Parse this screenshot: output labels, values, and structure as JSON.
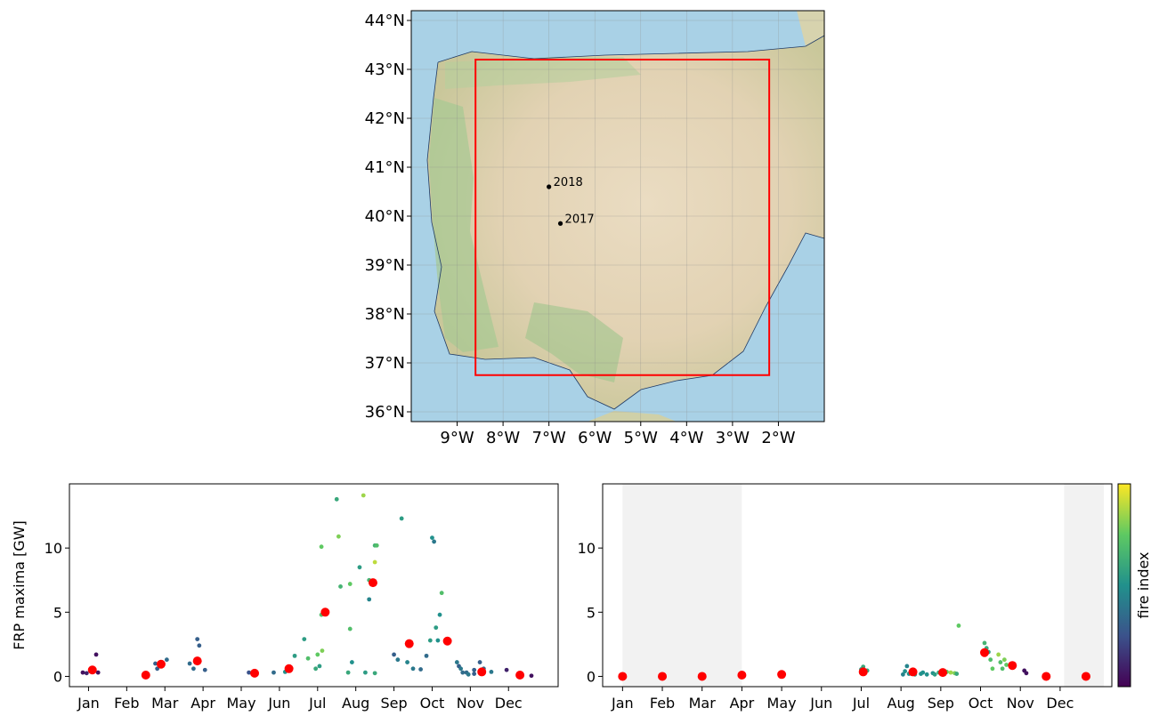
{
  "chart_data": [
    {
      "type": "map",
      "xlim": [
        -10.0,
        -1.0
      ],
      "ylim": [
        35.8,
        44.2
      ],
      "x_ticks": [
        -9,
        -8,
        -7,
        -6,
        -5,
        -4,
        -3,
        -2
      ],
      "x_tick_labels": [
        "9°W",
        "8°W",
        "7°W",
        "6°W",
        "5°W",
        "4°W",
        "3°W",
        "2°W"
      ],
      "y_ticks": [
        36,
        37,
        38,
        39,
        40,
        41,
        42,
        43,
        44
      ],
      "y_tick_labels": [
        "36°N",
        "37°N",
        "38°N",
        "39°N",
        "40°N",
        "41°N",
        "42°N",
        "43°N",
        "44°N"
      ],
      "box": {
        "lon": [
          -8.6,
          -2.2
        ],
        "lat": [
          36.75,
          43.2
        ],
        "color": "#ff0000"
      },
      "points": [
        {
          "label": "2018",
          "lon": -7.0,
          "lat": 40.6
        },
        {
          "label": "2017",
          "lon": -6.75,
          "lat": 39.85
        }
      ],
      "grid": true
    },
    {
      "type": "scatter",
      "ylabel": "FRP maxima [GW]",
      "xlim": [
        0,
        12.8
      ],
      "ylim": [
        -0.8,
        15.0
      ],
      "y_ticks": [
        0,
        5,
        10
      ],
      "y_tick_labels": [
        "0",
        "5",
        "10"
      ],
      "x_ticks": [
        0.5,
        1.5,
        2.5,
        3.5,
        4.5,
        5.5,
        6.5,
        7.5,
        8.5,
        9.5,
        10.5,
        11.5
      ],
      "x_tick_labels": [
        "Jan",
        "Feb",
        "Mar",
        "Apr",
        "May",
        "Jun",
        "Jul",
        "Aug",
        "Sep",
        "Oct",
        "Nov",
        "Dec"
      ],
      "small_points": [
        [
          0.35,
          0.3,
          0.05
        ],
        [
          0.45,
          0.25,
          0.1
        ],
        [
          0.7,
          1.7,
          0.05
        ],
        [
          0.75,
          0.3,
          0.05
        ],
        [
          2.25,
          1.0,
          0.3
        ],
        [
          2.3,
          0.6,
          0.3
        ],
        [
          2.55,
          1.3,
          0.35
        ],
        [
          3.15,
          1.0,
          0.35
        ],
        [
          3.25,
          0.6,
          0.35
        ],
        [
          3.35,
          2.9,
          0.3
        ],
        [
          3.4,
          2.4,
          0.3
        ],
        [
          3.55,
          0.5,
          0.3
        ],
        [
          4.7,
          0.3,
          0.25
        ],
        [
          4.8,
          0.25,
          0.3
        ],
        [
          5.35,
          0.3,
          0.35
        ],
        [
          5.65,
          0.35,
          0.5
        ],
        [
          5.9,
          1.6,
          0.55
        ],
        [
          6.15,
          2.9,
          0.55
        ],
        [
          6.25,
          1.4,
          0.7
        ],
        [
          6.45,
          0.6,
          0.6
        ],
        [
          6.5,
          1.7,
          0.75
        ],
        [
          6.55,
          0.8,
          0.55
        ],
        [
          6.6,
          10.1,
          0.75
        ],
        [
          6.6,
          4.8,
          0.7
        ],
        [
          6.62,
          2.0,
          0.8
        ],
        [
          7.0,
          13.8,
          0.6
        ],
        [
          7.05,
          10.9,
          0.8
        ],
        [
          7.1,
          7.0,
          0.65
        ],
        [
          7.3,
          0.3,
          0.6
        ],
        [
          7.35,
          3.7,
          0.7
        ],
        [
          7.35,
          7.2,
          0.75
        ],
        [
          7.4,
          1.1,
          0.5
        ],
        [
          7.6,
          8.5,
          0.55
        ],
        [
          7.7,
          14.1,
          0.85
        ],
        [
          7.75,
          0.3,
          0.55
        ],
        [
          7.85,
          6.0,
          0.45
        ],
        [
          7.85,
          7.5,
          0.65
        ],
        [
          8.0,
          10.2,
          0.65
        ],
        [
          8.05,
          10.2,
          0.7
        ],
        [
          8.0,
          8.9,
          0.9
        ],
        [
          8.0,
          0.25,
          0.6
        ],
        [
          8.5,
          1.7,
          0.3
        ],
        [
          8.6,
          1.3,
          0.4
        ],
        [
          8.7,
          12.3,
          0.55
        ],
        [
          8.85,
          1.1,
          0.45
        ],
        [
          9.0,
          0.6,
          0.4
        ],
        [
          9.2,
          0.55,
          0.35
        ],
        [
          9.35,
          1.6,
          0.35
        ],
        [
          9.45,
          2.8,
          0.55
        ],
        [
          9.5,
          10.8,
          0.5
        ],
        [
          9.55,
          10.5,
          0.4
        ],
        [
          9.6,
          3.8,
          0.55
        ],
        [
          9.65,
          2.8,
          0.5
        ],
        [
          9.7,
          4.8,
          0.5
        ],
        [
          9.75,
          6.5,
          0.7
        ],
        [
          10.15,
          1.1,
          0.4
        ],
        [
          10.2,
          0.8,
          0.3
        ],
        [
          10.25,
          0.6,
          0.4
        ],
        [
          10.3,
          0.3,
          0.35
        ],
        [
          10.4,
          0.3,
          0.35
        ],
        [
          10.45,
          0.15,
          0.4
        ],
        [
          10.6,
          0.5,
          0.3
        ],
        [
          10.6,
          0.2,
          0.3
        ],
        [
          10.75,
          1.1,
          0.3
        ],
        [
          10.85,
          0.6,
          0.35
        ],
        [
          11.05,
          0.35,
          0.4
        ],
        [
          11.45,
          0.5,
          0.1
        ],
        [
          11.85,
          0.15,
          0.1
        ],
        [
          12.1,
          0.05,
          0.05
        ]
      ],
      "monthly_points": [
        [
          0.6,
          0.5
        ],
        [
          2.0,
          0.1
        ],
        [
          2.4,
          0.95
        ],
        [
          3.35,
          1.2
        ],
        [
          4.85,
          0.25
        ],
        [
          5.75,
          0.6
        ],
        [
          6.7,
          5.0
        ],
        [
          7.95,
          7.3
        ],
        [
          8.9,
          2.55
        ],
        [
          9.9,
          2.75
        ],
        [
          10.8,
          0.35
        ],
        [
          11.8,
          0.1
        ]
      ],
      "monthly_color": "#ff0000"
    },
    {
      "type": "scatter",
      "xlim": [
        0,
        12.8
      ],
      "ylim": [
        -0.8,
        15.0
      ],
      "y_ticks": [
        0,
        5,
        10
      ],
      "y_tick_labels": [
        "0",
        "5",
        "10"
      ],
      "x_ticks": [
        0.5,
        1.5,
        2.5,
        3.5,
        4.5,
        5.5,
        6.5,
        7.5,
        8.5,
        9.5,
        10.5,
        11.5
      ],
      "x_tick_labels": [
        "Jan",
        "Feb",
        "Mar",
        "Apr",
        "May",
        "Jun",
        "Jul",
        "Aug",
        "Sep",
        "Oct",
        "Nov",
        "Dec"
      ],
      "shaded_spans": [
        [
          0.5,
          3.5
        ],
        [
          11.6,
          12.6
        ]
      ],
      "small_points": [
        [
          6.5,
          0.55,
          0.55
        ],
        [
          6.55,
          0.75,
          0.6
        ],
        [
          6.6,
          0.3,
          0.6
        ],
        [
          6.65,
          0.45,
          0.6
        ],
        [
          7.55,
          0.15,
          0.45
        ],
        [
          7.6,
          0.4,
          0.5
        ],
        [
          7.65,
          0.8,
          0.45
        ],
        [
          7.7,
          0.2,
          0.5
        ],
        [
          7.75,
          0.25,
          0.5
        ],
        [
          7.85,
          0.15,
          0.55
        ],
        [
          8.0,
          0.2,
          0.5
        ],
        [
          8.05,
          0.3,
          0.5
        ],
        [
          8.15,
          0.15,
          0.5
        ],
        [
          8.3,
          0.25,
          0.5
        ],
        [
          8.35,
          0.15,
          0.55
        ],
        [
          8.45,
          0.3,
          0.6
        ],
        [
          8.5,
          0.35,
          0.7
        ],
        [
          8.55,
          0.2,
          0.55
        ],
        [
          8.6,
          0.4,
          0.8
        ],
        [
          8.65,
          0.35,
          0.75
        ],
        [
          8.75,
          0.3,
          0.85
        ],
        [
          8.85,
          0.25,
          0.8
        ],
        [
          8.9,
          0.2,
          0.6
        ],
        [
          8.95,
          3.95,
          0.75
        ],
        [
          9.6,
          2.6,
          0.65
        ],
        [
          9.65,
          2.2,
          0.6
        ],
        [
          9.7,
          1.9,
          0.55
        ],
        [
          9.75,
          1.3,
          0.7
        ],
        [
          9.8,
          0.6,
          0.75
        ],
        [
          9.95,
          1.7,
          0.85
        ],
        [
          10.0,
          1.1,
          0.7
        ],
        [
          10.05,
          0.6,
          0.7
        ],
        [
          10.1,
          1.3,
          0.8
        ],
        [
          10.15,
          0.9,
          0.75
        ],
        [
          10.6,
          0.45,
          0.05
        ],
        [
          10.65,
          0.25,
          0.05
        ]
      ],
      "monthly_points": [
        [
          0.5,
          0.0
        ],
        [
          1.5,
          0.0
        ],
        [
          2.5,
          0.0
        ],
        [
          3.5,
          0.1
        ],
        [
          4.5,
          0.15
        ],
        [
          6.55,
          0.35
        ],
        [
          7.8,
          0.35
        ],
        [
          8.55,
          0.3
        ],
        [
          9.6,
          1.85
        ],
        [
          10.3,
          0.85
        ],
        [
          11.15,
          0.0
        ],
        [
          12.15,
          0.0
        ]
      ],
      "monthly_color": "#ff0000",
      "colorbar": {
        "label": "fire index",
        "range": [
          0,
          1
        ]
      }
    }
  ]
}
